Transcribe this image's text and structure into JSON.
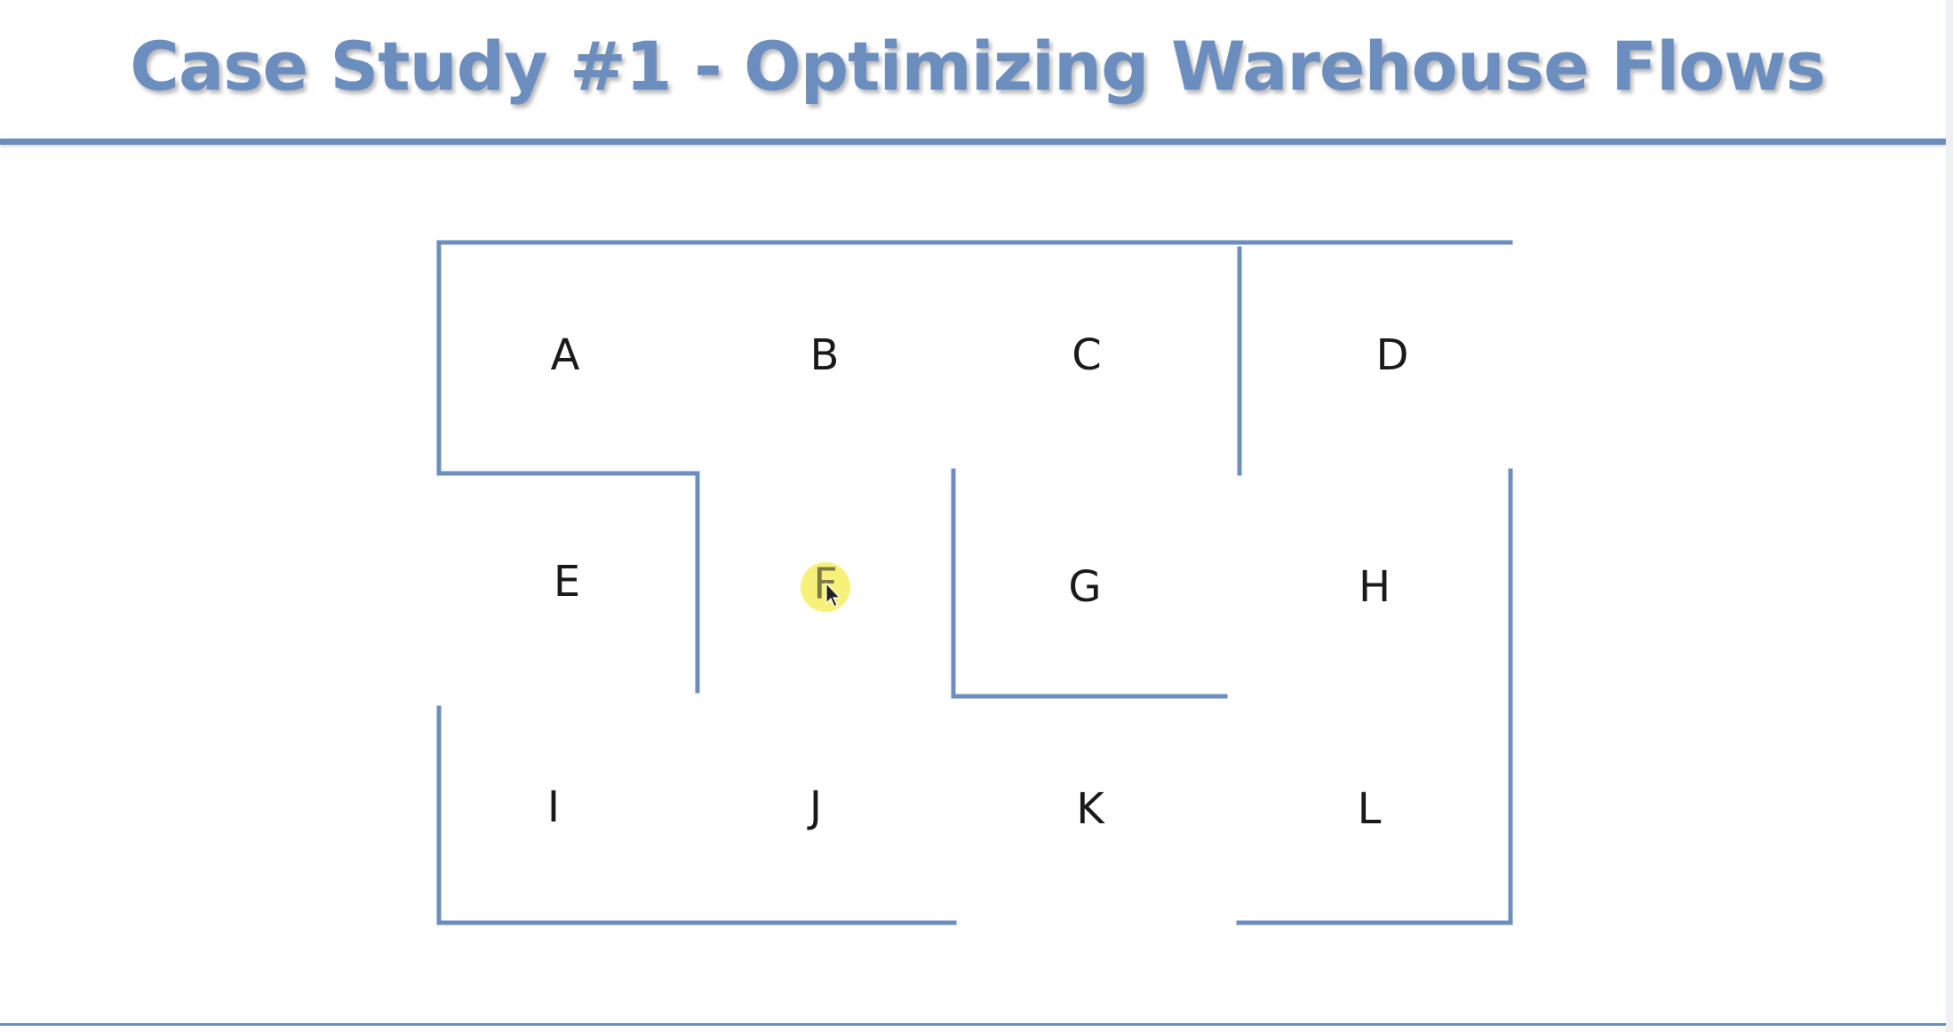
{
  "title": "Case Study #1 - Optimizing Warehouse Flows",
  "colors": {
    "accent": "#6c8ebf",
    "label": "#1a1a1a",
    "cursor_highlight": "#f6ef6a"
  },
  "zones": [
    {
      "label": "A"
    },
    {
      "label": "B"
    },
    {
      "label": "C"
    },
    {
      "label": "D"
    },
    {
      "label": "E"
    },
    {
      "label": "F"
    },
    {
      "label": "G"
    },
    {
      "label": "H"
    },
    {
      "label": "I"
    },
    {
      "label": "J"
    },
    {
      "label": "K"
    },
    {
      "label": "L"
    }
  ],
  "cursor": {
    "icon": "pointer-arrow-icon",
    "over_zone": "F"
  }
}
